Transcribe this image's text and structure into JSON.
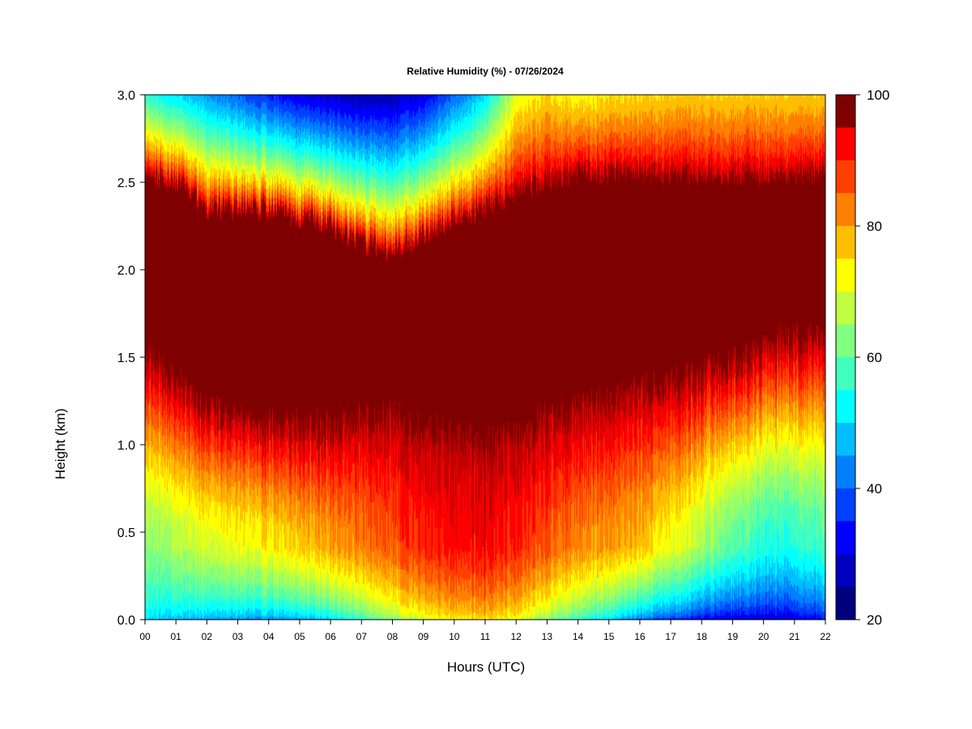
{
  "chart_data": {
    "type": "heatmap",
    "title": "Relative Humidity (%) - 07/26/2024",
    "xlabel": "Hours (UTC)",
    "ylabel": "Height (km)",
    "xlim": [
      0,
      22
    ],
    "ylim": [
      0.0,
      3.0
    ],
    "x_tick_labels": [
      "00",
      "01",
      "02",
      "03",
      "04",
      "05",
      "06",
      "07",
      "08",
      "09",
      "10",
      "11",
      "12",
      "13",
      "14",
      "15",
      "16",
      "17",
      "18",
      "19",
      "20",
      "21",
      "22"
    ],
    "y_tick_labels": [
      "0.0",
      "0.5",
      "1.0",
      "1.5",
      "2.0",
      "2.5",
      "3.0"
    ],
    "colorbar": {
      "label_values": [
        "20",
        "40",
        "60",
        "80",
        "100"
      ],
      "range": [
        20,
        100
      ],
      "levels": [
        20,
        25,
        30,
        35,
        40,
        45,
        50,
        55,
        60,
        65,
        70,
        75,
        80,
        85,
        90,
        95,
        100
      ],
      "colors": [
        "#00007F",
        "#0000BF",
        "#0000FF",
        "#0040FF",
        "#0080FF",
        "#00BFFF",
        "#00FFFF",
        "#40FFBF",
        "#80FF80",
        "#BFFF40",
        "#FFFF00",
        "#FFBF00",
        "#FF8000",
        "#FF4000",
        "#FF0000",
        "#BF0000",
        "#7F0000"
      ]
    },
    "hours": [
      0,
      1,
      2,
      3,
      4,
      5,
      6,
      7,
      8,
      9,
      10,
      11,
      12,
      13,
      14,
      15,
      16,
      17,
      18,
      19,
      20,
      21,
      22
    ],
    "heights_km": [
      0.0,
      0.1,
      0.2,
      0.3,
      0.4,
      0.5,
      0.6,
      0.7,
      0.8,
      0.9,
      1.0,
      1.1,
      1.2,
      1.3,
      1.4,
      1.5,
      1.6,
      1.7,
      1.8,
      1.9,
      2.0,
      2.1,
      2.2,
      2.3,
      2.4,
      2.5,
      2.6,
      2.7,
      2.8,
      2.9,
      3.0
    ],
    "saturated_layer_km": {
      "bottom": [
        1.5,
        1.35,
        1.2,
        1.15,
        1.1,
        1.1,
        1.1,
        1.15,
        1.15,
        1.1,
        1.05,
        1.0,
        1.05,
        1.15,
        1.2,
        1.25,
        1.3,
        1.35,
        1.4,
        1.45,
        1.55,
        1.6,
        1.65
      ],
      "top": [
        2.55,
        2.5,
        2.35,
        2.35,
        2.35,
        2.3,
        2.25,
        2.15,
        2.1,
        2.2,
        2.3,
        2.35,
        2.45,
        2.5,
        2.55,
        2.55,
        2.55,
        2.55,
        2.55,
        2.55,
        2.55,
        2.55,
        2.55
      ]
    },
    "surface_rh": [
      48,
      46,
      45,
      44,
      43,
      44,
      48,
      55,
      62,
      68,
      72,
      74,
      70,
      62,
      55,
      48,
      40,
      35,
      30,
      28,
      27,
      28,
      32
    ],
    "low_level_max_rh": [
      62,
      66,
      70,
      72,
      74,
      76,
      80,
      83,
      86,
      90,
      92,
      93,
      90,
      86,
      82,
      80,
      78,
      72,
      66,
      60,
      55,
      55,
      58
    ],
    "top_rh": [
      55,
      50,
      45,
      40,
      35,
      30,
      28,
      26,
      26,
      30,
      40,
      50,
      70,
      75,
      72,
      74,
      75,
      76,
      76,
      76,
      76,
      76,
      76
    ]
  }
}
